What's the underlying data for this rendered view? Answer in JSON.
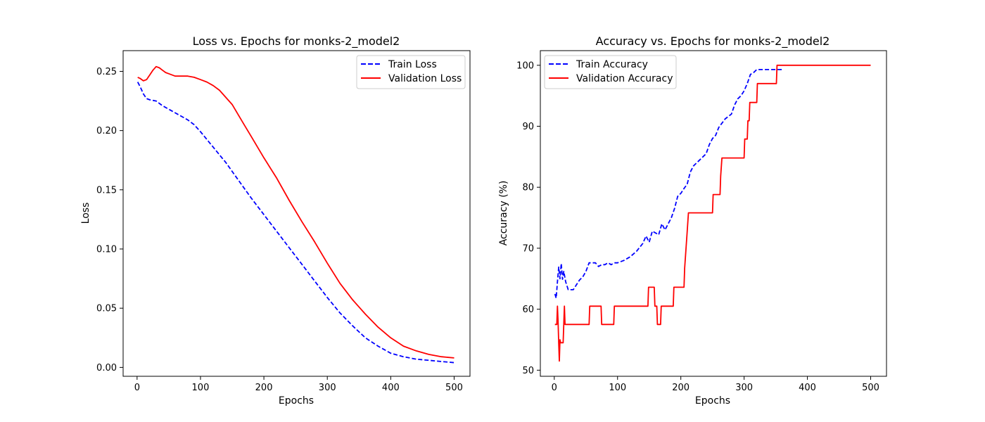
{
  "chart_data": [
    {
      "type": "line",
      "title": "Loss vs. Epochs for monks-2_model2",
      "xlabel": "Epochs",
      "ylabel": "Loss",
      "xlim": [
        -22,
        525
      ],
      "ylim": [
        -0.0075,
        0.2675
      ],
      "xticks": [
        0,
        100,
        200,
        300,
        400,
        500
      ],
      "yticks": [
        0.0,
        0.05,
        0.1,
        0.15,
        0.2,
        0.25
      ],
      "xtick_labels": [
        "0",
        "100",
        "200",
        "300",
        "400",
        "500"
      ],
      "ytick_labels": [
        "0.00",
        "0.05",
        "0.10",
        "0.15",
        "0.20",
        "0.25"
      ],
      "grid": false,
      "legend_position": "top-right",
      "series": [
        {
          "name": "Train Loss",
          "color": "#0000ff",
          "style": "dashed",
          "x": [
            1,
            5,
            10,
            15,
            20,
            30,
            40,
            50,
            60,
            70,
            80,
            90,
            100,
            120,
            140,
            160,
            180,
            200,
            220,
            240,
            260,
            280,
            300,
            320,
            340,
            360,
            380,
            400,
            420,
            440,
            460,
            480,
            500
          ],
          "y": [
            0.241,
            0.237,
            0.231,
            0.227,
            0.226,
            0.225,
            0.221,
            0.218,
            0.215,
            0.212,
            0.209,
            0.205,
            0.199,
            0.186,
            0.173,
            0.158,
            0.143,
            0.129,
            0.115,
            0.101,
            0.087,
            0.073,
            0.059,
            0.046,
            0.035,
            0.025,
            0.018,
            0.012,
            0.009,
            0.007,
            0.006,
            0.005,
            0.004
          ]
        },
        {
          "name": "Validation Loss",
          "color": "#ff0000",
          "style": "solid",
          "x": [
            1,
            5,
            10,
            15,
            20,
            25,
            30,
            35,
            40,
            45,
            50,
            60,
            70,
            80,
            90,
            100,
            110,
            120,
            130,
            140,
            150,
            160,
            170,
            180,
            200,
            220,
            240,
            260,
            280,
            300,
            320,
            340,
            360,
            380,
            400,
            420,
            440,
            460,
            480,
            500
          ],
          "y": [
            0.245,
            0.244,
            0.242,
            0.243,
            0.247,
            0.251,
            0.254,
            0.253,
            0.251,
            0.249,
            0.248,
            0.246,
            0.246,
            0.246,
            0.245,
            0.243,
            0.241,
            0.238,
            0.234,
            0.228,
            0.222,
            0.213,
            0.204,
            0.195,
            0.177,
            0.16,
            0.141,
            0.123,
            0.106,
            0.088,
            0.071,
            0.057,
            0.045,
            0.034,
            0.025,
            0.018,
            0.014,
            0.011,
            0.009,
            0.008
          ]
        }
      ]
    },
    {
      "type": "line",
      "title": "Accuracy vs. Epochs for monks-2_model2",
      "xlabel": "Epochs",
      "ylabel": "Accuracy (%)",
      "xlim": [
        -22,
        525
      ],
      "ylim": [
        49.0,
        102.4
      ],
      "xticks": [
        0,
        100,
        200,
        300,
        400,
        500
      ],
      "yticks": [
        50,
        60,
        70,
        80,
        90,
        100
      ],
      "xtick_labels": [
        "0",
        "100",
        "200",
        "300",
        "400",
        "500"
      ],
      "ytick_labels": [
        "50",
        "60",
        "70",
        "80",
        "90",
        "100"
      ],
      "grid": false,
      "legend_position": "top-left",
      "series": [
        {
          "name": "Train Accuracy",
          "color": "#0000ff",
          "style": "dashed",
          "x": [
            1,
            3,
            5,
            7,
            9,
            11,
            13,
            15,
            18,
            22,
            26,
            30,
            35,
            40,
            45,
            50,
            55,
            60,
            65,
            70,
            75,
            80,
            85,
            90,
            95,
            100,
            110,
            120,
            130,
            140,
            145,
            150,
            155,
            160,
            165,
            170,
            175,
            180,
            185,
            190,
            195,
            200,
            205,
            210,
            215,
            220,
            225,
            230,
            240,
            245,
            250,
            255,
            260,
            265,
            270,
            280,
            285,
            290,
            295,
            300,
            305,
            310,
            315,
            320,
            330,
            340,
            350,
            355,
            360
          ],
          "y": [
            62.5,
            61.8,
            64.5,
            66.9,
            65.0,
            67.5,
            64.9,
            66.2,
            64.5,
            63.2,
            63.2,
            63.2,
            64.0,
            64.8,
            65.3,
            66.2,
            67.6,
            67.6,
            67.6,
            67.0,
            67.3,
            67.3,
            67.6,
            67.3,
            67.6,
            67.6,
            68.0,
            68.6,
            69.5,
            70.8,
            72.0,
            71.0,
            72.8,
            72.5,
            72.2,
            74.0,
            73.0,
            74.0,
            75.0,
            76.5,
            78.5,
            79.0,
            79.8,
            80.5,
            82.5,
            83.5,
            84.0,
            84.5,
            85.5,
            87.0,
            88.0,
            88.5,
            89.8,
            90.5,
            91.2,
            92.0,
            93.5,
            94.5,
            95.0,
            95.8,
            97.0,
            98.5,
            98.8,
            99.3,
            99.3,
            99.3,
            99.3,
            99.3,
            99.3
          ]
        },
        {
          "name": "Validation Accuracy",
          "color": "#ff0000",
          "style": "solid",
          "x": [
            1,
            4,
            5,
            6,
            7,
            8,
            9,
            10,
            12,
            14,
            15,
            16,
            17,
            18,
            20,
            30,
            40,
            55,
            56,
            70,
            74,
            75,
            90,
            94,
            95,
            110,
            130,
            148,
            149,
            158,
            159,
            162,
            163,
            168,
            169,
            172,
            173,
            188,
            189,
            205,
            206,
            208,
            210,
            212,
            215,
            216,
            230,
            250,
            251,
            262,
            263,
            265,
            266,
            290,
            300,
            301,
            305,
            306,
            308,
            309,
            315,
            316,
            320,
            321,
            330,
            351,
            352,
            360,
            400,
            450,
            500
          ],
          "y": [
            57.5,
            57.5,
            60.5,
            58.0,
            54.5,
            51.5,
            55.0,
            54.5,
            54.5,
            54.5,
            57.5,
            60.5,
            57.5,
            57.5,
            57.5,
            57.5,
            57.5,
            57.5,
            60.5,
            60.5,
            60.5,
            57.5,
            57.5,
            57.5,
            60.5,
            60.5,
            60.5,
            60.5,
            63.6,
            63.6,
            60.5,
            60.5,
            57.5,
            57.5,
            60.5,
            60.5,
            60.5,
            60.5,
            63.6,
            63.6,
            66.7,
            69.7,
            72.7,
            75.8,
            75.8,
            75.8,
            75.8,
            75.8,
            78.8,
            78.8,
            81.8,
            84.8,
            84.8,
            84.8,
            84.8,
            87.9,
            87.9,
            90.9,
            90.9,
            93.9,
            93.9,
            93.9,
            93.9,
            97.0,
            97.0,
            97.0,
            100.0,
            100.0,
            100.0,
            100.0,
            100.0
          ]
        }
      ]
    }
  ]
}
